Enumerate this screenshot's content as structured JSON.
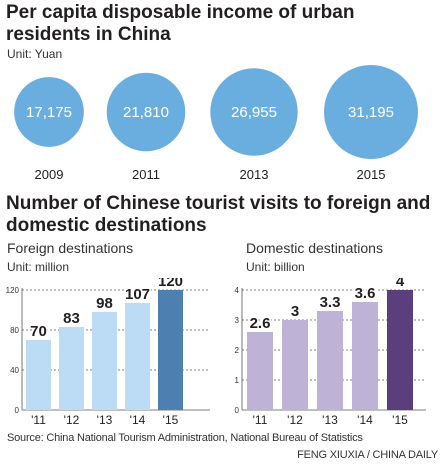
{
  "income": {
    "title": "Per capita disposable income of urban residents in China",
    "unit": "Unit: Yuan",
    "chart_data": {
      "type": "bubble",
      "title": "Per capita disposable income of urban residents in China",
      "unit": "Yuan",
      "categories": [
        "2009",
        "2011",
        "2013",
        "2015"
      ],
      "values": [
        17175,
        21810,
        26955,
        31195
      ],
      "value_labels": [
        "17,175",
        "21,810",
        "26,955",
        "31,195"
      ],
      "color": "#6aaee0"
    }
  },
  "tourism": {
    "title": "Number of Chinese tourist visits to foreign and domestic destinations",
    "source": "Source: China National Tourism Administration, National Bureau of Statistics",
    "credit": "FENG XIUXIA / CHINA DAILY",
    "foreign": {
      "subtitle": "Foreign destinations",
      "unit": "Unit: million",
      "chart_data": {
        "type": "bar",
        "title": "Foreign destinations",
        "unit": "million",
        "categories": [
          "'11",
          "'12",
          "'13",
          "'14",
          "'15"
        ],
        "values": [
          70,
          83,
          98,
          107,
          120
        ],
        "value_labels": [
          "70",
          "83",
          "98",
          "107",
          "120"
        ],
        "ylim": [
          0,
          120
        ],
        "yticks": [
          0,
          40,
          80,
          120
        ],
        "grid": true,
        "bar_color": "#bcdcf5",
        "highlight_color": "#4d7fb0"
      }
    },
    "domestic": {
      "subtitle": "Domestic destinations",
      "unit": "Unit: billion",
      "chart_data": {
        "type": "bar",
        "title": "Domestic destinations",
        "unit": "billion",
        "categories": [
          "'11",
          "'12",
          "'13",
          "'14",
          "'15"
        ],
        "values": [
          2.6,
          3,
          3.3,
          3.6,
          4
        ],
        "value_labels": [
          "2.6",
          "3",
          "3.3",
          "3.6",
          "4"
        ],
        "ylim": [
          0,
          4
        ],
        "yticks": [
          0,
          1,
          2,
          3,
          4
        ],
        "grid": true,
        "bar_color": "#beb2d6",
        "highlight_color": "#5b3f7d"
      }
    }
  }
}
